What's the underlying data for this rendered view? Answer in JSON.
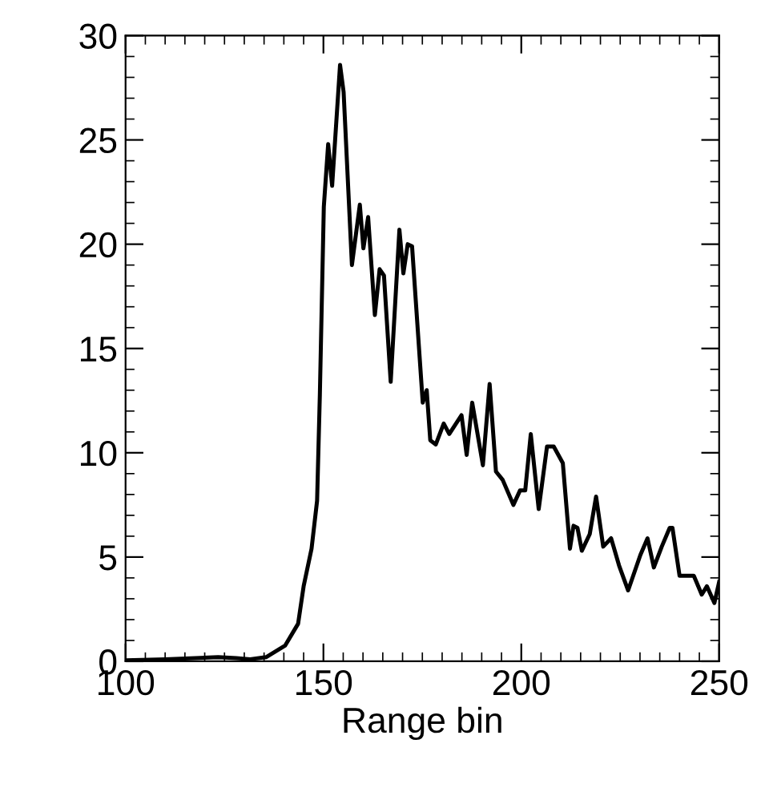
{
  "chart_data": {
    "type": "line",
    "xlabel": "Range bin",
    "xlim": [
      100,
      250
    ],
    "xticks": [
      100,
      150,
      200,
      250
    ],
    "ylim": [
      0,
      30
    ],
    "yticks": [
      0,
      5,
      10,
      15,
      20,
      25,
      30
    ],
    "grid": false,
    "legend": false,
    "marker": "none",
    "line_style": "solid",
    "series": [
      {
        "color": "#000000",
        "x": [
          100,
          110,
          123.4,
          128,
          131.5,
          135.5,
          140.3,
          143.6,
          145,
          147,
          148.4,
          149.1,
          150.1,
          151.2,
          152.2,
          154.2,
          155.1,
          157.2,
          159.2,
          160.1,
          161.3,
          163,
          164.2,
          165.3,
          167,
          169.2,
          170.2,
          171.3,
          172.4,
          175.1,
          176.1,
          177,
          178.4,
          180.4,
          181.8,
          184.9,
          186.2,
          187.6,
          190.3,
          192,
          193.6,
          195.3,
          198,
          199.7,
          201,
          202.4,
          204.4,
          206.5,
          208.2,
          210.5,
          212.3,
          213.2,
          214.2,
          215.3,
          217.3,
          218.9,
          220.7,
          222.7,
          224.7,
          227,
          230.1,
          231.9,
          233.5,
          235.5,
          237.5,
          238.2,
          240,
          243.6,
          245.6,
          246.9,
          248.8,
          250
        ],
        "values": [
          0.05,
          0.1,
          0.2,
          0.15,
          0.1,
          0.2,
          0.75,
          1.8,
          3.6,
          5.4,
          7.7,
          12.8,
          21.8,
          24.8,
          22.8,
          28.6,
          27.3,
          19.0,
          21.9,
          19.8,
          21.3,
          16.6,
          18.8,
          18.5,
          13.4,
          20.7,
          18.6,
          20.0,
          19.9,
          12.4,
          13.0,
          10.6,
          10.4,
          11.4,
          10.9,
          11.8,
          9.9,
          12.4,
          9.4,
          13.3,
          9.1,
          8.7,
          7.5,
          8.2,
          8.2,
          10.9,
          7.3,
          10.3,
          10.3,
          9.5,
          5.4,
          6.5,
          6.4,
          5.3,
          6.1,
          7.9,
          5.5,
          5.9,
          4.6,
          3.4,
          5.1,
          5.9,
          4.5,
          5.5,
          6.4,
          6.4,
          4.1,
          4.1,
          3.2,
          3.6,
          2.8,
          3.8
        ]
      }
    ]
  }
}
